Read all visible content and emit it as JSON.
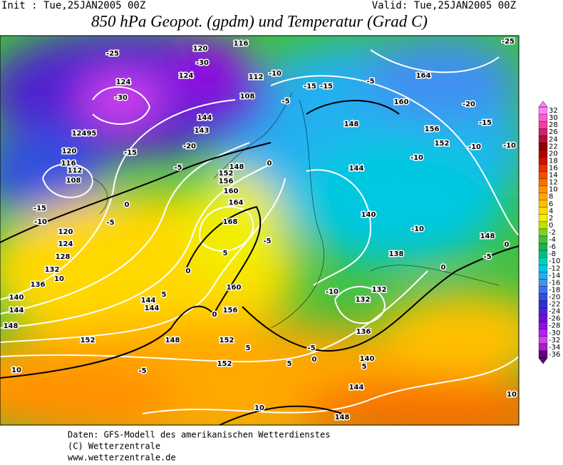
{
  "header": {
    "init": "Init : Tue,25JAN2005 00Z",
    "valid": "Valid: Tue,25JAN2005 00Z",
    "title": "850 hPa Geopot. (gpdm) und Temperatur (Grad C)"
  },
  "map_labels": [
    "-25",
    "120",
    "116",
    "-25",
    "-30",
    "124",
    "112",
    "-10",
    "164",
    "124",
    "-15",
    "-15",
    "-5",
    "-30",
    "108",
    "-5",
    "160",
    "-20",
    "144",
    "148",
    "-15",
    "156",
    "143",
    "12495",
    "152",
    "-10",
    "-20",
    "-10",
    "120",
    "-15",
    "-10",
    "116",
    "112",
    "-5",
    "152",
    "148",
    "0",
    "144",
    "108",
    "156",
    "160",
    "0",
    "-15",
    "164",
    "140",
    "-10",
    "168",
    "-10",
    "148",
    "120",
    "-5",
    "124",
    "-5",
    "0",
    "5",
    "128",
    "138",
    "-5",
    "132",
    "0",
    "0",
    "10",
    "136",
    "160",
    "-10",
    "132",
    "140",
    "144",
    "5",
    "132",
    "144",
    "144",
    "0",
    "156",
    "148",
    "136",
    "152",
    "148",
    "152",
    "5",
    "-5",
    "140",
    "0",
    "5",
    "152",
    "5",
    "10",
    "-5",
    "144",
    "10",
    "10",
    "148"
  ],
  "colorbar": {
    "labels": [
      "32",
      "30",
      "28",
      "26",
      "24",
      "22",
      "20",
      "18",
      "16",
      "14",
      "12",
      "10",
      "8",
      "6",
      "4",
      "2",
      "0",
      "-2",
      "-4",
      "-6",
      "-8",
      "-10",
      "-12",
      "-14",
      "-16",
      "-18",
      "-20",
      "-22",
      "-24",
      "-26",
      "-28",
      "-30",
      "-32",
      "-34",
      "-36"
    ],
    "colors": [
      "#ff80ff",
      "#ff5ad0",
      "#f040a0",
      "#d02070",
      "#b01030",
      "#900000",
      "#b00000",
      "#d01000",
      "#e83000",
      "#f05000",
      "#f87000",
      "#ff9000",
      "#ffa800",
      "#ffc000",
      "#ffd800",
      "#f0f000",
      "#c0e000",
      "#80d020",
      "#40c040",
      "#20b050",
      "#00c080",
      "#00d0c0",
      "#00c8e0",
      "#20b0f0",
      "#4090f0",
      "#4070f0",
      "#3050e0",
      "#3030d0",
      "#5020d0",
      "#7010d0",
      "#9010e0",
      "#b020f0",
      "#d040f0",
      "#a020c0",
      "#600080"
    ]
  },
  "footer": [
    "Daten: GFS-Modell des amerikanischen Wetterdienstes",
    "(C) Wetterzentrale",
    "www.wetterzentrale.de"
  ]
}
